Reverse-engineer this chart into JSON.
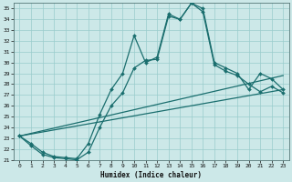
{
  "xlabel": "Humidex (Indice chaleur)",
  "bg_color": "#cce8e8",
  "grid_color": "#99cccc",
  "line_color": "#1a6e6e",
  "ylim": [
    21,
    35.5
  ],
  "xlim": [
    -0.5,
    23.5
  ],
  "yticks": [
    21,
    22,
    23,
    24,
    25,
    26,
    27,
    28,
    29,
    30,
    31,
    32,
    33,
    34,
    35
  ],
  "xticks": [
    0,
    1,
    2,
    3,
    4,
    5,
    6,
    7,
    8,
    9,
    10,
    11,
    12,
    13,
    14,
    15,
    16,
    17,
    18,
    19,
    20,
    21,
    22,
    23
  ],
  "curve1_x": [
    0,
    1,
    2,
    3,
    4,
    5,
    6,
    7,
    8,
    9,
    10,
    11,
    12,
    13,
    14,
    15,
    16,
    17,
    18,
    19,
    20,
    21,
    22,
    23
  ],
  "curve1_y": [
    23.2,
    22.5,
    21.7,
    21.3,
    21.2,
    21.1,
    22.5,
    25.2,
    27.5,
    29.0,
    32.5,
    30.0,
    30.5,
    34.5,
    34.0,
    35.5,
    35.0,
    30.0,
    29.5,
    29.0,
    27.5,
    29.0,
    28.5,
    27.5
  ],
  "curve2_x": [
    0,
    1,
    2,
    3,
    4,
    5,
    6,
    7,
    8,
    9,
    10,
    11,
    12,
    13,
    14,
    15,
    16,
    17,
    18,
    19,
    20,
    21,
    22,
    23
  ],
  "curve2_y": [
    23.2,
    22.3,
    21.5,
    21.2,
    21.1,
    21.0,
    21.7,
    24.0,
    26.0,
    27.2,
    29.5,
    30.2,
    30.3,
    34.3,
    34.0,
    35.5,
    34.7,
    29.8,
    29.2,
    28.8,
    28.0,
    27.3,
    27.8,
    27.2
  ],
  "trend1_x": [
    0,
    23
  ],
  "trend1_y": [
    23.2,
    27.5
  ],
  "trend2_x": [
    0,
    23
  ],
  "trend2_y": [
    23.2,
    28.8
  ],
  "lw": 0.9,
  "markersize": 2.0
}
